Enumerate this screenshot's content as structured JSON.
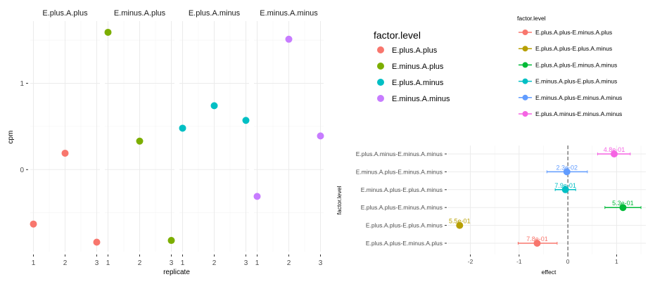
{
  "chart_data": [
    {
      "type": "scatter",
      "facet_by": "factor.level",
      "xlabel": "replicate",
      "ylabel": "cpm",
      "xlim": [
        0.9,
        3.1
      ],
      "ylim": [
        -0.95,
        1.72
      ],
      "xticks": [
        1,
        2,
        3
      ],
      "yticks": [
        0,
        1
      ],
      "grid": true,
      "legend": {
        "title": "factor.level",
        "placement": "right"
      },
      "series": [
        {
          "name": "E.plus.A.plus",
          "color": "#F8766D",
          "x": [
            1,
            2,
            3
          ],
          "y": [
            -0.63,
            0.19,
            -0.84
          ]
        },
        {
          "name": "E.minus.A.plus",
          "color": "#7CAE00",
          "x": [
            1,
            2,
            3
          ],
          "y": [
            1.59,
            0.33,
            -0.82
          ]
        },
        {
          "name": "E.plus.A.minus",
          "color": "#00BFC4",
          "x": [
            1,
            2,
            3
          ],
          "y": [
            0.48,
            0.74,
            0.57
          ]
        },
        {
          "name": "E.minus.A.minus",
          "color": "#C77CFF",
          "x": [
            1,
            2,
            3
          ],
          "y": [
            -0.31,
            1.51,
            0.39
          ]
        }
      ]
    },
    {
      "type": "scatter",
      "subtype": "pointrange",
      "xlabel": "effect",
      "ylabel": "factor.level",
      "xlim": [
        -2.47,
        1.6
      ],
      "xticks": [
        -2,
        -1,
        0,
        1
      ],
      "reference_line": 0,
      "grid": true,
      "legend": {
        "title": "factor.level",
        "placement": "top-right"
      },
      "series": [
        {
          "name": "E.plus.A.plus-E.minus.A.plus",
          "color": "#F8766D",
          "effect": -0.63,
          "low": -1.02,
          "high": -0.22,
          "label": "7.8e-01"
        },
        {
          "name": "E.plus.A.plus-E.plus.A.minus",
          "color": "#B79F00",
          "effect": -2.22,
          "low": null,
          "high": null,
          "label": "5.5e-01"
        },
        {
          "name": "E.plus.A.plus-E.minus.A.minus",
          "color": "#00BA38",
          "effect": 1.13,
          "low": 0.76,
          "high": 1.5,
          "label": "5.3e-01"
        },
        {
          "name": "E.minus.A.plus-E.plus.A.minus",
          "color": "#00BFC4",
          "effect": -0.05,
          "low": -0.26,
          "high": 0.16,
          "label": "7.9e-01"
        },
        {
          "name": "E.minus.A.plus-E.minus.A.minus",
          "color": "#619CFF",
          "effect": -0.02,
          "low": -0.43,
          "high": 0.4,
          "label": "2.3e-02"
        },
        {
          "name": "E.plus.A.minus-E.minus.A.minus",
          "color": "#F564E3",
          "effect": 0.95,
          "low": 0.61,
          "high": 1.28,
          "label": "4.8e-01"
        }
      ]
    }
  ]
}
